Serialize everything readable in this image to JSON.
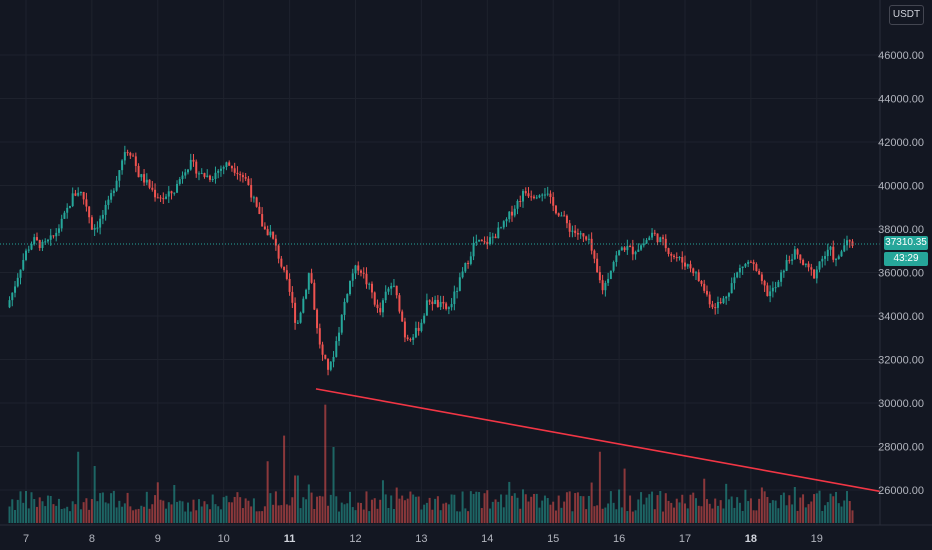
{
  "header": {
    "currency_label": "USDT"
  },
  "price_scale": {
    "ticks": [
      "46000.00",
      "44000.00",
      "42000.00",
      "40000.00",
      "38000.00",
      "36000.00",
      "34000.00",
      "32000.00",
      "30000.00",
      "28000.00",
      "26000.00"
    ],
    "tick_values": [
      46000,
      44000,
      42000,
      40000,
      38000,
      36000,
      34000,
      32000,
      30000,
      28000,
      26000
    ],
    "last_price_label": "37310.35",
    "countdown_label": "43:29"
  },
  "time_axis": {
    "labels": [
      {
        "text": "7",
        "bold": false
      },
      {
        "text": "8",
        "bold": false
      },
      {
        "text": "9",
        "bold": false
      },
      {
        "text": "10",
        "bold": false
      },
      {
        "text": "11",
        "bold": true
      },
      {
        "text": "12",
        "bold": false
      },
      {
        "text": "13",
        "bold": false
      },
      {
        "text": "14",
        "bold": false
      },
      {
        "text": "15",
        "bold": false
      },
      {
        "text": "16",
        "bold": false
      },
      {
        "text": "17",
        "bold": false
      },
      {
        "text": "18",
        "bold": true
      },
      {
        "text": "19",
        "bold": false
      }
    ]
  },
  "colors": {
    "up": "#26a69a",
    "down": "#ef5350",
    "trendline": "#f23645",
    "background": "#131722",
    "grid": "#1e222d",
    "axis_text": "#b2b5be"
  },
  "chart_data": {
    "type": "candlestick",
    "x_unit": "day of month",
    "y_range": [
      24800,
      48300
    ],
    "last_price": 37310.35,
    "price_path": [
      [
        6.75,
        34400
      ],
      [
        6.85,
        35200
      ],
      [
        6.95,
        36200
      ],
      [
        7.05,
        37000
      ],
      [
        7.15,
        37500
      ],
      [
        7.3,
        37200
      ],
      [
        7.45,
        37600
      ],
      [
        7.6,
        38400
      ],
      [
        7.75,
        39500
      ],
      [
        7.85,
        39800
      ],
      [
        7.95,
        39200
      ],
      [
        8.05,
        38000
      ],
      [
        8.15,
        38300
      ],
      [
        8.3,
        39200
      ],
      [
        8.45,
        40700
      ],
      [
        8.55,
        41700
      ],
      [
        8.65,
        41500
      ],
      [
        8.75,
        40500
      ],
      [
        8.85,
        40200
      ],
      [
        9.0,
        39600
      ],
      [
        9.15,
        39400
      ],
      [
        9.3,
        39800
      ],
      [
        9.45,
        40800
      ],
      [
        9.55,
        41000
      ],
      [
        9.7,
        40500
      ],
      [
        9.85,
        40400
      ],
      [
        10.0,
        40800
      ],
      [
        10.1,
        41000
      ],
      [
        10.25,
        40700
      ],
      [
        10.4,
        40200
      ],
      [
        10.55,
        38800
      ],
      [
        10.65,
        38000
      ],
      [
        10.75,
        37800
      ],
      [
        10.85,
        37000
      ],
      [
        10.95,
        36000
      ],
      [
        11.05,
        35000
      ],
      [
        11.15,
        33500
      ],
      [
        11.25,
        34800
      ],
      [
        11.35,
        36200
      ],
      [
        11.45,
        33500
      ],
      [
        11.55,
        32000
      ],
      [
        11.65,
        31500
      ],
      [
        11.8,
        33500
      ],
      [
        11.9,
        35000
      ],
      [
        12.0,
        36000
      ],
      [
        12.1,
        36300
      ],
      [
        12.2,
        35600
      ],
      [
        12.3,
        35000
      ],
      [
        12.4,
        34000
      ],
      [
        12.5,
        35000
      ],
      [
        12.6,
        35500
      ],
      [
        12.7,
        34500
      ],
      [
        12.8,
        33000
      ],
      [
        12.95,
        33200
      ],
      [
        13.05,
        33800
      ],
      [
        13.15,
        34800
      ],
      [
        13.3,
        34500
      ],
      [
        13.45,
        34300
      ],
      [
        13.55,
        35000
      ],
      [
        13.65,
        35800
      ],
      [
        13.75,
        36600
      ],
      [
        13.85,
        37400
      ],
      [
        14.0,
        37300
      ],
      [
        14.15,
        37700
      ],
      [
        14.3,
        38200
      ],
      [
        14.45,
        39000
      ],
      [
        14.6,
        39700
      ],
      [
        14.75,
        39600
      ],
      [
        14.9,
        39800
      ],
      [
        15.05,
        39000
      ],
      [
        15.15,
        38700
      ],
      [
        15.3,
        38000
      ],
      [
        15.45,
        37700
      ],
      [
        15.6,
        37300
      ],
      [
        15.7,
        36000
      ],
      [
        15.8,
        35200
      ],
      [
        15.95,
        36500
      ],
      [
        16.1,
        37200
      ],
      [
        16.25,
        37000
      ],
      [
        16.4,
        37300
      ],
      [
        16.55,
        37800
      ],
      [
        16.7,
        37400
      ],
      [
        16.85,
        36800
      ],
      [
        17.0,
        36500
      ],
      [
        17.15,
        36200
      ],
      [
        17.3,
        35400
      ],
      [
        17.45,
        34500
      ],
      [
        17.6,
        34600
      ],
      [
        17.75,
        35500
      ],
      [
        17.9,
        36300
      ],
      [
        18.05,
        36500
      ],
      [
        18.15,
        35800
      ],
      [
        18.3,
        35000
      ],
      [
        18.45,
        35400
      ],
      [
        18.55,
        36300
      ],
      [
        18.7,
        36900
      ],
      [
        18.85,
        36300
      ],
      [
        19.0,
        35900
      ],
      [
        19.1,
        36600
      ],
      [
        19.25,
        37000
      ],
      [
        19.35,
        36400
      ],
      [
        19.45,
        37300
      ],
      [
        19.55,
        37310.35
      ]
    ],
    "volume_spikes": [
      [
        7.8,
        0.75
      ],
      [
        8.05,
        0.6
      ],
      [
        10.65,
        0.65
      ],
      [
        10.9,
        0.92
      ],
      [
        11.1,
        0.5
      ],
      [
        11.55,
        1.0
      ],
      [
        11.65,
        0.8
      ],
      [
        12.4,
        0.45
      ],
      [
        15.7,
        0.75
      ],
      [
        17.9,
        0.35
      ],
      [
        18.5,
        0.32
      ]
    ],
    "trendline": {
      "x": [
        11.4,
        20.3
      ],
      "y": [
        30650,
        25750
      ]
    }
  }
}
